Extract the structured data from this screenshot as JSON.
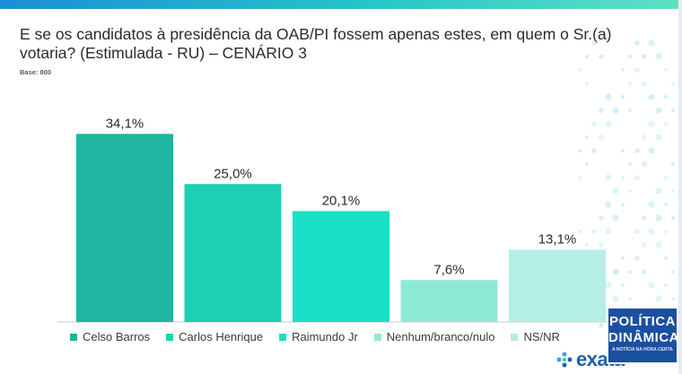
{
  "title": "E se os candidatos à presidência da OAB/PI fossem apenas estes, em quem o Sr.(a) votaria? (Estimulada - RU) – CENÁRIO 3",
  "base_label": "Base: 800",
  "brand": "exata",
  "stamp": {
    "line1": "POLÍTICA",
    "line2": "DINÂMICA",
    "line3": "A NOTÍCIA NA HORA CERTA"
  },
  "chart_data": {
    "type": "bar",
    "categories": [
      "Celso Barros",
      "Carlos Henrique",
      "Raimundo Jr",
      "Nenhum/branco/nulo",
      "NS/NR"
    ],
    "values": [
      34.1,
      25.0,
      20.1,
      7.6,
      13.1
    ],
    "data_labels": [
      "34,1%",
      "25,0%",
      "20,1%",
      "7,6%",
      "13,1%"
    ],
    "colors": [
      "#1fb5a0",
      "#1fcfb3",
      "#19e0c6",
      "#8ee9d6",
      "#b4eee4"
    ],
    "ylim": [
      0,
      40
    ],
    "grid": false,
    "legend": "bottom"
  }
}
